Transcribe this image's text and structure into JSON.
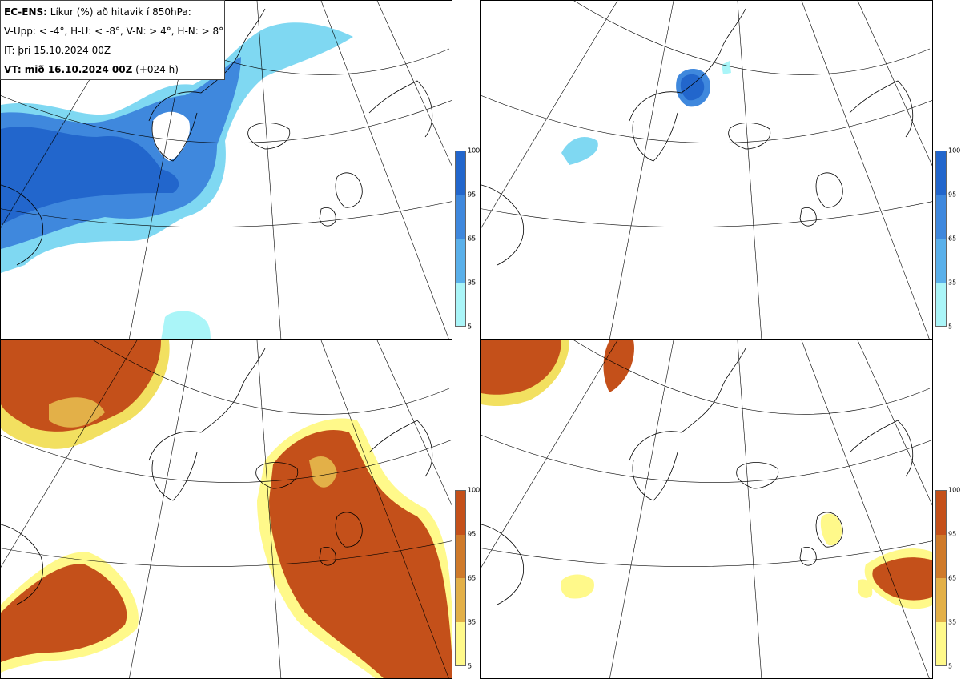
{
  "legend": {
    "line1_bold": "EC-ENS:",
    "line1_rest": " Líkur (%) að hitavik í 850hPa:",
    "line2": "V-Upp: < -4°, H-U: < -8°, V-N: > 4°, H-N: > 8°",
    "line3": "IT: þri 15.10.2024 00Z",
    "line4_bold": "VT: mið 16.10.2024 00Z",
    "line4_rest": " (+024 h)"
  },
  "colorbar": {
    "ticks": [
      "100",
      "95",
      "65",
      "35",
      "5"
    ],
    "blue": [
      "#2266cc",
      "#3f88dd",
      "#5ab0ea",
      "#7fd8f2",
      "#aaf5f8"
    ],
    "orange": [
      "#c4501a",
      "#cf7a2a",
      "#e3b048",
      "#f2e060",
      "#fff98a"
    ]
  },
  "panels": [
    {
      "name": "cold-minus4",
      "quantity": "< -4°",
      "palette": "blue"
    },
    {
      "name": "cold-minus8",
      "quantity": "< -8°",
      "palette": "blue"
    },
    {
      "name": "warm-plus4",
      "quantity": "> 4°",
      "palette": "orange"
    },
    {
      "name": "warm-plus8",
      "quantity": "> 8°",
      "palette": "orange"
    }
  ]
}
